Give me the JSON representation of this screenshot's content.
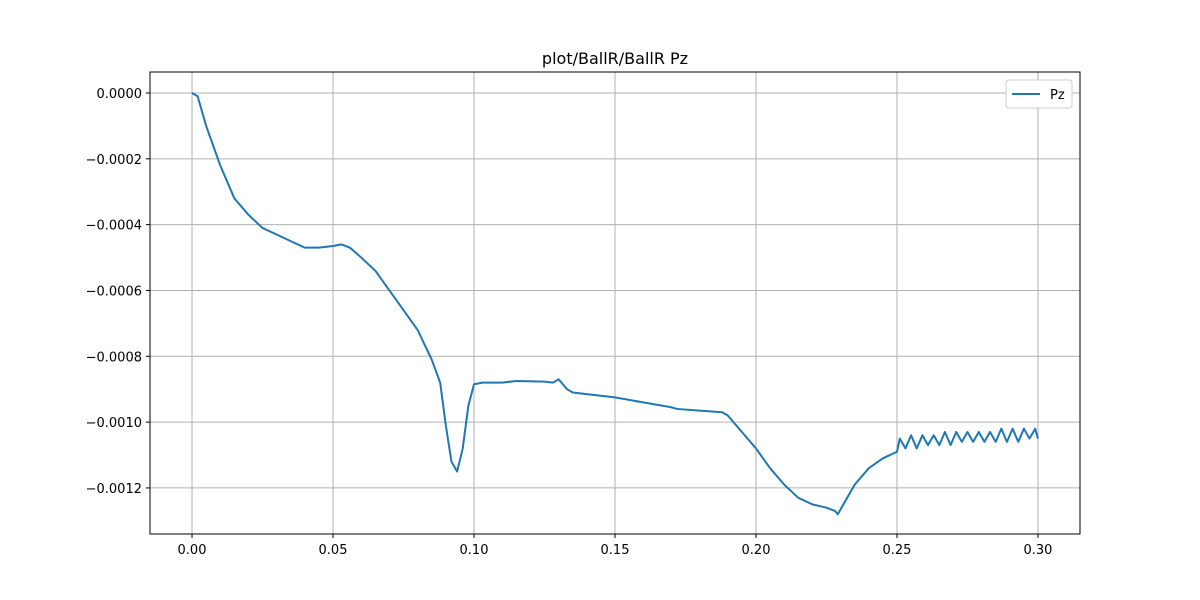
{
  "chart_data": {
    "type": "line",
    "title": "plot/BallR/BallR Pz",
    "x": [
      0,
      0.002,
      0.005,
      0.01,
      0.015,
      0.02,
      0.025,
      0.03,
      0.035,
      0.04,
      0.045,
      0.05,
      0.053,
      0.056,
      0.06,
      0.065,
      0.07,
      0.075,
      0.08,
      0.085,
      0.088,
      0.09,
      0.092,
      0.094,
      0.096,
      0.098,
      0.1,
      0.103,
      0.11,
      0.115,
      0.125,
      0.128,
      0.13,
      0.132,
      0.133,
      0.135,
      0.14,
      0.15,
      0.16,
      0.17,
      0.172,
      0.18,
      0.188,
      0.19,
      0.195,
      0.2,
      0.205,
      0.21,
      0.215,
      0.22,
      0.225,
      0.228,
      0.229,
      0.231,
      0.235,
      0.24,
      0.245,
      0.25,
      0.251,
      0.253,
      0.255,
      0.257,
      0.259,
      0.261,
      0.263,
      0.265,
      0.267,
      0.269,
      0.271,
      0.273,
      0.275,
      0.277,
      0.279,
      0.281,
      0.283,
      0.285,
      0.287,
      0.289,
      0.291,
      0.293,
      0.295,
      0.297,
      0.299,
      0.3
    ],
    "series": [
      {
        "name": "Pz",
        "color": "#1f77b4",
        "values": [
          0,
          -1e-05,
          -0.0001,
          -0.00022,
          -0.00032,
          -0.00037,
          -0.00041,
          -0.00043,
          -0.00045,
          -0.00047,
          -0.00047,
          -0.000465,
          -0.00046,
          -0.00047,
          -0.0005,
          -0.00054,
          -0.0006,
          -0.00066,
          -0.00072,
          -0.00081,
          -0.00088,
          -0.00101,
          -0.00112,
          -0.00115,
          -0.00108,
          -0.00095,
          -0.000885,
          -0.00088,
          -0.00088,
          -0.000875,
          -0.000877,
          -0.00088,
          -0.00087,
          -0.00089,
          -0.0009,
          -0.00091,
          -0.000915,
          -0.000925,
          -0.00094,
          -0.000955,
          -0.00096,
          -0.000965,
          -0.00097,
          -0.00098,
          -0.00103,
          -0.00108,
          -0.00114,
          -0.00119,
          -0.00123,
          -0.00125,
          -0.00126,
          -0.00127,
          -0.00128,
          -0.00125,
          -0.00119,
          -0.00114,
          -0.00111,
          -0.00109,
          -0.00105,
          -0.00108,
          -0.00104,
          -0.00108,
          -0.00104,
          -0.00107,
          -0.00104,
          -0.00107,
          -0.00103,
          -0.00107,
          -0.00103,
          -0.00106,
          -0.00103,
          -0.00106,
          -0.00103,
          -0.00106,
          -0.00103,
          -0.00106,
          -0.00102,
          -0.00106,
          -0.00102,
          -0.00106,
          -0.00102,
          -0.00105,
          -0.00102,
          -0.00105
        ]
      }
    ],
    "xlim": [
      -0.0149,
      0.3149
    ],
    "ylim": [
      -0.00134,
      6.38e-05
    ],
    "xticks": [
      {
        "value": 0,
        "label": "0.00"
      },
      {
        "value": 0.05,
        "label": "0.05"
      },
      {
        "value": 0.1,
        "label": "0.10"
      },
      {
        "value": 0.15,
        "label": "0.15"
      },
      {
        "value": 0.2,
        "label": "0.20"
      },
      {
        "value": 0.25,
        "label": "0.25"
      },
      {
        "value": 0.3,
        "label": "0.30"
      }
    ],
    "yticks": [
      {
        "value": 0,
        "label": "0.0000"
      },
      {
        "value": -0.0002,
        "label": "−0.0002"
      },
      {
        "value": -0.0004,
        "label": "−0.0004"
      },
      {
        "value": -0.0006,
        "label": "−0.0006"
      },
      {
        "value": -0.0008,
        "label": "−0.0008"
      },
      {
        "value": -0.001,
        "label": "−0.0010"
      },
      {
        "value": -0.0012,
        "label": "−0.0012"
      }
    ],
    "grid": true,
    "legend": "upper right"
  }
}
